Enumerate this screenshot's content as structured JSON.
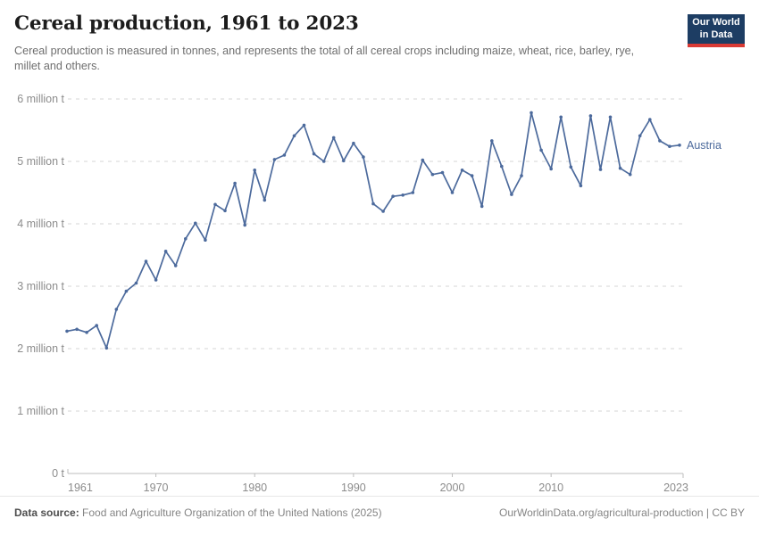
{
  "header": {
    "title": "Cereal production, 1961 to 2023",
    "subtitle": "Cereal production is measured in tonnes, and represents the total of all cereal crops including maize, wheat, rice, barley, rye, millet and others.",
    "logo": {
      "line1": "Our World",
      "line2": "in Data"
    }
  },
  "colors": {
    "line": "#4c6a9c",
    "grid": "#d6d6d6",
    "axis": "#bcbcbc",
    "tick_label": "#8c8c8c",
    "logo_bg": "#1d3d63",
    "logo_stripe": "#d93a34"
  },
  "chart_data": {
    "type": "line",
    "title": "Cereal production, 1961 to 2023",
    "unit": "million tonnes",
    "xlim": [
      1961,
      2023
    ],
    "ylim": [
      0,
      6
    ],
    "grid": "horizontal-dashed",
    "legend_position": "end-of-line-label",
    "x_ticks": [
      1961,
      1970,
      1980,
      1990,
      2000,
      2010,
      2023
    ],
    "y_ticks": [
      {
        "value": 0,
        "label": "0 t"
      },
      {
        "value": 1,
        "label": "1 million t"
      },
      {
        "value": 2,
        "label": "2 million t"
      },
      {
        "value": 3,
        "label": "3 million t"
      },
      {
        "value": 4,
        "label": "4 million t"
      },
      {
        "value": 5,
        "label": "5 million t"
      },
      {
        "value": 6,
        "label": "6 million t"
      }
    ],
    "series": [
      {
        "name": "Austria",
        "color": "#4c6a9c",
        "years": [
          1961,
          1962,
          1963,
          1964,
          1965,
          1966,
          1967,
          1968,
          1969,
          1970,
          1971,
          1972,
          1973,
          1974,
          1975,
          1976,
          1977,
          1978,
          1979,
          1980,
          1981,
          1982,
          1983,
          1984,
          1985,
          1986,
          1987,
          1988,
          1989,
          1990,
          1991,
          1992,
          1993,
          1994,
          1995,
          1996,
          1997,
          1998,
          1999,
          2000,
          2001,
          2002,
          2003,
          2004,
          2005,
          2006,
          2007,
          2008,
          2009,
          2010,
          2011,
          2012,
          2013,
          2014,
          2015,
          2016,
          2017,
          2018,
          2019,
          2020,
          2021,
          2022,
          2023
        ],
        "values": [
          2.28,
          2.31,
          2.26,
          2.37,
          2.01,
          2.63,
          2.92,
          3.05,
          3.4,
          3.1,
          3.56,
          3.33,
          3.76,
          4.01,
          3.74,
          4.31,
          4.21,
          4.65,
          3.98,
          4.86,
          4.38,
          5.03,
          5.1,
          5.41,
          5.58,
          5.12,
          5.0,
          5.38,
          5.01,
          5.29,
          5.07,
          4.32,
          4.2,
          4.44,
          4.46,
          4.5,
          5.02,
          4.79,
          4.82,
          4.5,
          4.86,
          4.77,
          4.28,
          5.33,
          4.92,
          4.47,
          4.77,
          5.78,
          5.18,
          4.88,
          5.71,
          4.91,
          4.61,
          5.73,
          4.87,
          5.71,
          4.89,
          4.79,
          5.41,
          5.67,
          5.33,
          5.24,
          5.26
        ]
      }
    ]
  },
  "footer": {
    "source_label": "Data source:",
    "source_text": " Food and Agriculture Organization of the United Nations (2025)",
    "credit": "OurWorldinData.org/agricultural-production | CC BY"
  }
}
